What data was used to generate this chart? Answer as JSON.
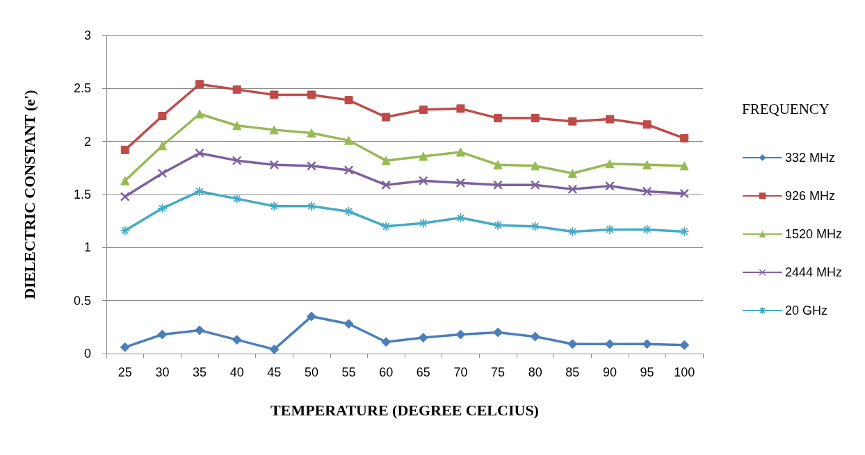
{
  "chart_data": {
    "type": "line",
    "xlabel": "TEMPERATURE (DEGREE CELCIUS)",
    "ylabel": "DIELECTRIC CONSTANT (e')",
    "legend_title": "FREQUENCY",
    "categories": [
      "25",
      "30",
      "35",
      "40",
      "45",
      "50",
      "55",
      "60",
      "65",
      "70",
      "75",
      "80",
      "85",
      "90",
      "95",
      "100"
    ],
    "ylim": [
      0,
      3
    ],
    "yticks": [
      0,
      0.5,
      1,
      1.5,
      2,
      2.5,
      3
    ],
    "grid": "y",
    "legend": "right",
    "line_style": "solid",
    "series": [
      {
        "name": "332 MHz",
        "color": "#4a7ebb",
        "marker": "diamond",
        "values": [
          0.06,
          0.18,
          0.22,
          0.13,
          0.04,
          0.35,
          0.28,
          0.11,
          0.15,
          0.18,
          0.2,
          0.16,
          0.09,
          0.09,
          0.09,
          0.08
        ]
      },
      {
        "name": "926 MHz",
        "color": "#be4b48",
        "marker": "square",
        "values": [
          1.92,
          2.24,
          2.54,
          2.49,
          2.44,
          2.44,
          2.39,
          2.23,
          2.3,
          2.31,
          2.22,
          2.22,
          2.19,
          2.21,
          2.16,
          2.03
        ]
      },
      {
        "name": "1520 MHz",
        "color": "#98b954",
        "marker": "triangle",
        "values": [
          1.63,
          1.96,
          2.26,
          2.15,
          2.11,
          2.08,
          2.01,
          1.82,
          1.86,
          1.9,
          1.78,
          1.77,
          1.7,
          1.79,
          1.78,
          1.77
        ]
      },
      {
        "name": "2444 MHz",
        "color": "#7d60a0",
        "marker": "cross",
        "values": [
          1.48,
          1.7,
          1.89,
          1.82,
          1.78,
          1.77,
          1.73,
          1.59,
          1.63,
          1.61,
          1.59,
          1.59,
          1.55,
          1.58,
          1.53,
          1.51
        ]
      },
      {
        "name": "20 GHz",
        "color": "#46aac5",
        "marker": "star",
        "values": [
          1.16,
          1.37,
          1.53,
          1.46,
          1.39,
          1.39,
          1.34,
          1.2,
          1.23,
          1.28,
          1.21,
          1.2,
          1.15,
          1.17,
          1.17,
          1.15
        ]
      }
    ]
  }
}
